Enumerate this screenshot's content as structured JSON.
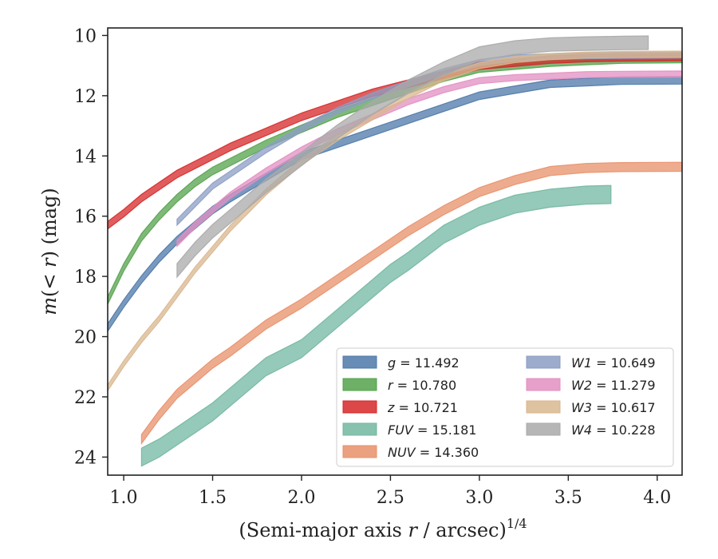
{
  "chart_data": {
    "type": "line",
    "xlabel": "(Semi-major axis r / arcsec)",
    "xlabel_italic_var": "r",
    "xlabel_parts": [
      "(Semi-major axis ",
      "r",
      " / arcsec)",
      "1/4"
    ],
    "ylabel": "m(< r) (mag)",
    "ylabel_parts": [
      "m",
      "(< ",
      "r",
      ") (mag)"
    ],
    "xlim": [
      0.91,
      4.14
    ],
    "ylim": [
      24.6,
      9.75
    ],
    "y_inverted": true,
    "xticks": [
      1.0,
      1.5,
      2.0,
      2.5,
      3.0,
      3.5,
      4.0
    ],
    "xtick_labels": [
      "1.0",
      "1.5",
      "2.0",
      "2.5",
      "3.0",
      "3.5",
      "4.0"
    ],
    "yticks": [
      10,
      12,
      14,
      16,
      18,
      20,
      22,
      24
    ],
    "ytick_labels": [
      "10",
      "12",
      "14",
      "16",
      "18",
      "20",
      "22",
      "24"
    ],
    "grid": false,
    "legend_position": "lower-right",
    "series": [
      {
        "name": "g = 11.492",
        "label_var": "g",
        "label_val": "11.492",
        "color": "#4c78a8",
        "x": [
          0.91,
          1.0,
          1.1,
          1.2,
          1.3,
          1.4,
          1.5,
          1.6,
          1.8,
          2.0,
          2.2,
          2.4,
          2.6,
          2.8,
          3.0,
          3.2,
          3.4,
          3.6,
          3.8,
          4.14
        ],
        "y": [
          19.7,
          18.9,
          18.1,
          17.4,
          16.8,
          16.3,
          15.8,
          15.4,
          14.7,
          14.0,
          13.6,
          13.2,
          12.8,
          12.4,
          12.0,
          11.8,
          11.6,
          11.55,
          11.5,
          11.49
        ],
        "width": 0.25
      },
      {
        "name": "r = 10.780",
        "label_var": "r",
        "label_val": "10.780",
        "color": "#54a24b",
        "x": [
          0.91,
          1.0,
          1.1,
          1.2,
          1.3,
          1.4,
          1.5,
          1.6,
          1.8,
          2.0,
          2.2,
          2.4,
          2.6,
          2.8,
          3.0,
          3.2,
          3.4,
          3.6,
          3.8,
          4.14
        ],
        "y": [
          18.8,
          17.7,
          16.7,
          16.0,
          15.4,
          14.9,
          14.5,
          14.2,
          13.6,
          13.1,
          12.6,
          12.2,
          11.8,
          11.4,
          11.1,
          11.0,
          10.9,
          10.85,
          10.8,
          10.78
        ],
        "width": 0.25
      },
      {
        "name": "z = 10.721",
        "label_var": "z",
        "label_val": "10.721",
        "color": "#d62728",
        "x": [
          0.91,
          1.0,
          1.1,
          1.2,
          1.3,
          1.4,
          1.5,
          1.6,
          1.8,
          2.0,
          2.2,
          2.4,
          2.6,
          2.8,
          3.0,
          3.2,
          3.4,
          3.6,
          3.8,
          4.14
        ],
        "y": [
          16.3,
          15.9,
          15.4,
          15.0,
          14.6,
          14.3,
          14.0,
          13.7,
          13.2,
          12.7,
          12.3,
          11.9,
          11.6,
          11.3,
          11.0,
          10.9,
          10.8,
          10.75,
          10.73,
          10.72
        ],
        "width": 0.25
      },
      {
        "name": "FUV = 15.181",
        "label_var": "FUV",
        "label_val": "15.181",
        "color": "#72b7a1",
        "x": [
          1.1,
          1.2,
          1.3,
          1.4,
          1.5,
          1.6,
          1.8,
          2.0,
          2.2,
          2.4,
          2.5,
          2.6,
          2.8,
          3.0,
          3.2,
          3.4,
          3.6,
          3.74
        ],
        "y": [
          24.0,
          23.7,
          23.3,
          22.9,
          22.5,
          22.0,
          21.0,
          20.4,
          19.4,
          18.4,
          17.9,
          17.5,
          16.6,
          16.0,
          15.6,
          15.4,
          15.3,
          15.28
        ],
        "width": 0.6
      },
      {
        "name": "NUV = 14.360",
        "label_var": "NUV",
        "label_val": "14.360",
        "color": "#e8906a",
        "x": [
          1.1,
          1.2,
          1.3,
          1.4,
          1.5,
          1.6,
          1.8,
          2.0,
          2.2,
          2.4,
          2.6,
          2.8,
          3.0,
          3.2,
          3.4,
          3.6,
          3.8,
          4.14
        ],
        "y": [
          23.4,
          22.6,
          21.9,
          21.4,
          20.9,
          20.5,
          19.6,
          18.9,
          18.1,
          17.3,
          16.5,
          15.8,
          15.2,
          14.8,
          14.5,
          14.4,
          14.37,
          14.36
        ],
        "width": 0.3
      },
      {
        "name": "W1 = 10.649",
        "label_var": "W1",
        "label_val": "10.649",
        "color": "#8c9dc4",
        "x": [
          1.3,
          1.4,
          1.5,
          1.6,
          1.8,
          2.0,
          2.2,
          2.4,
          2.6,
          2.8,
          3.0,
          3.2,
          3.4,
          3.6,
          3.8,
          4.14
        ],
        "y": [
          16.2,
          15.6,
          15.0,
          14.6,
          13.8,
          13.1,
          12.5,
          12.0,
          11.6,
          11.2,
          10.9,
          10.75,
          10.7,
          10.67,
          10.66,
          10.65
        ],
        "width": 0.2
      },
      {
        "name": "W2 = 11.279",
        "label_var": "W2",
        "label_val": "11.279",
        "color": "#e28fc1",
        "x": [
          1.3,
          1.4,
          1.5,
          1.6,
          1.8,
          2.0,
          2.2,
          2.4,
          2.6,
          2.8,
          3.0,
          3.2,
          3.4,
          3.6,
          3.8,
          4.14
        ],
        "y": [
          16.9,
          16.3,
          15.8,
          15.3,
          14.5,
          13.8,
          13.2,
          12.7,
          12.2,
          11.8,
          11.5,
          11.4,
          11.35,
          11.3,
          11.29,
          11.28
        ],
        "width": 0.2
      },
      {
        "name": "W3 = 10.617",
        "label_var": "W3",
        "label_val": "10.617",
        "color": "#d9b78f",
        "x": [
          0.91,
          1.0,
          1.1,
          1.2,
          1.3,
          1.4,
          1.5,
          1.6,
          1.8,
          2.0,
          2.2,
          2.4,
          2.6,
          2.8,
          3.0,
          3.2,
          3.4,
          3.6,
          3.8,
          4.14
        ],
        "y": [
          21.7,
          20.9,
          20.1,
          19.4,
          18.6,
          17.8,
          17.1,
          16.4,
          15.2,
          14.2,
          13.4,
          12.7,
          12.0,
          11.4,
          11.0,
          10.8,
          10.7,
          10.65,
          10.63,
          10.62
        ],
        "width": 0.2
      },
      {
        "name": "W4 = 10.228",
        "label_var": "W4",
        "label_val": "10.228",
        "color": "#a9a9a9",
        "x": [
          1.3,
          1.4,
          1.5,
          1.6,
          1.8,
          2.0,
          2.2,
          2.4,
          2.6,
          2.8,
          3.0,
          3.2,
          3.4,
          3.6,
          3.8,
          3.95
        ],
        "y": [
          17.8,
          17.1,
          16.5,
          16.0,
          15.0,
          14.1,
          13.2,
          12.4,
          11.7,
          11.1,
          10.6,
          10.4,
          10.3,
          10.27,
          10.25,
          10.24
        ],
        "width": 0.45
      }
    ]
  }
}
